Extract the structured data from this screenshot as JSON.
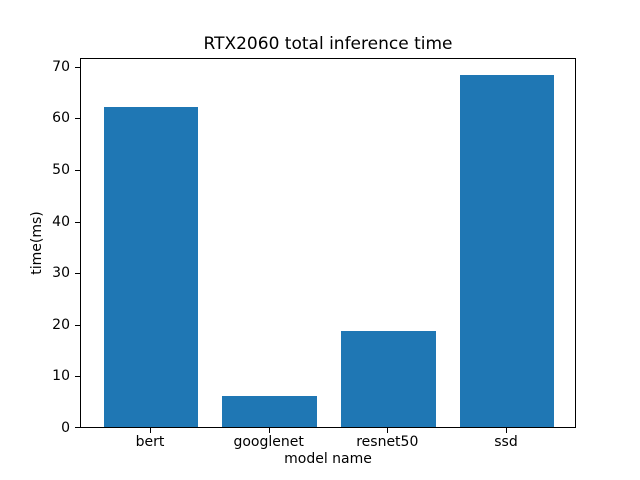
{
  "chart_data": {
    "type": "bar",
    "title": "RTX2060 total inference time",
    "xlabel": "model name",
    "ylabel": "time(ms)",
    "categories": [
      "bert",
      "googlenet",
      "resnet50",
      "ssd"
    ],
    "values": [
      62.0,
      6.0,
      18.6,
      68.3
    ],
    "ylim": [
      0,
      71.7
    ],
    "yticks": [
      0,
      10,
      20,
      30,
      40,
      50,
      60,
      70
    ],
    "bar_color": "#1f77b4",
    "axis_color": "#000000",
    "background_color": "#ffffff",
    "grid": false,
    "legend_position": "none"
  }
}
